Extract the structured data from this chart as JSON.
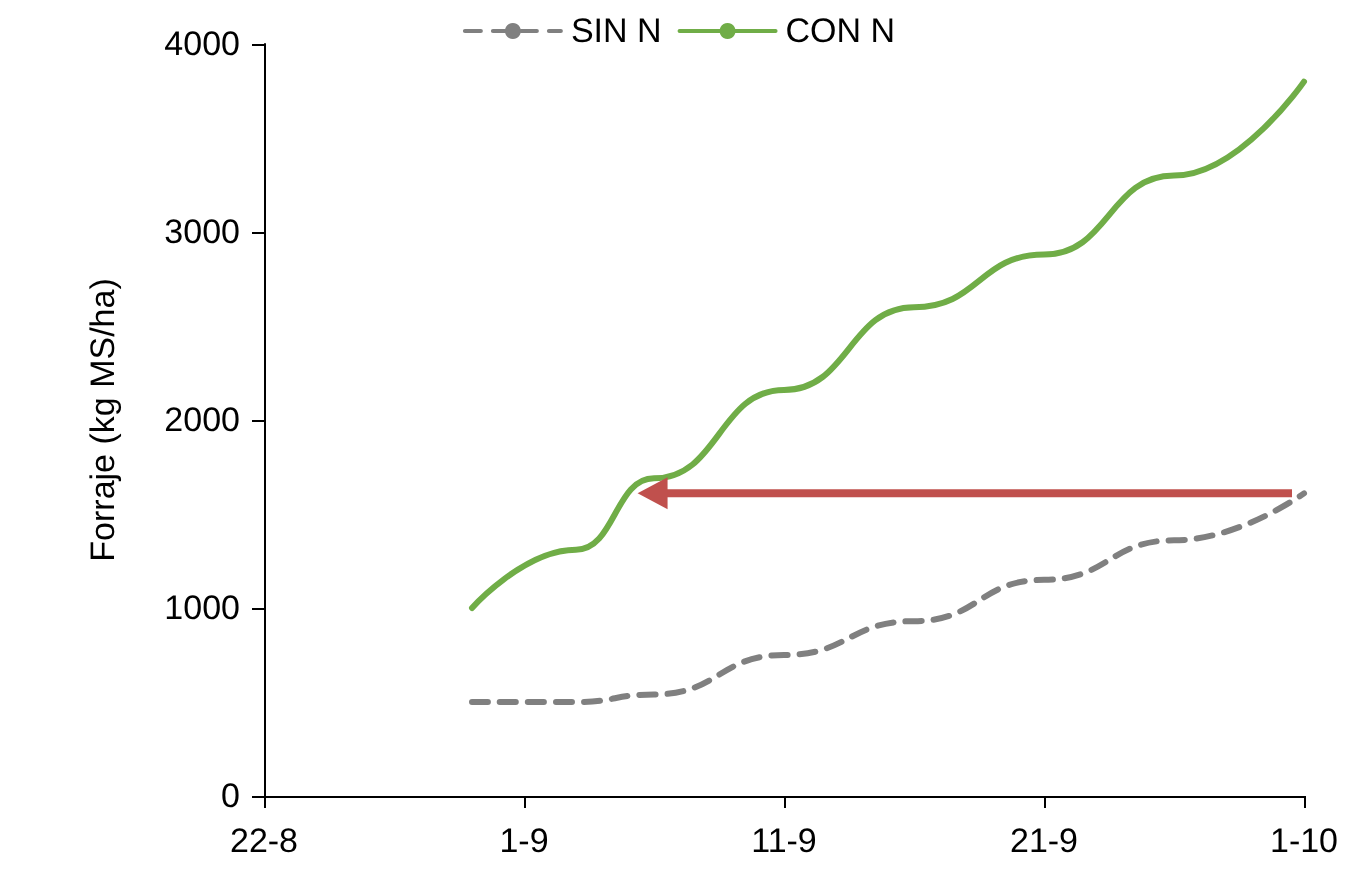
{
  "chart_data": {
    "type": "line",
    "ylabel": "Forraje (kg MS/ha)",
    "x": [
      "--08-30",
      "--09-03",
      "--09-06",
      "--09-11",
      "--09-16",
      "--09-21",
      "--09-26",
      "--10-01"
    ],
    "series": [
      {
        "name": "SIN N",
        "color": "#808080",
        "line_style": "dashed",
        "values": [
          500,
          500,
          540,
          750,
          930,
          1150,
          1360,
          1610
        ]
      },
      {
        "name": "CON N",
        "color": "#70ad47",
        "line_style": "solid",
        "values": [
          1000,
          1310,
          1690,
          2160,
          2600,
          2880,
          3300,
          3800
        ]
      }
    ],
    "xlim": [
      "--08-22",
      "--10-01"
    ],
    "xticks": [
      {
        "value": "--08-22",
        "label": "22-8"
      },
      {
        "value": "--09-01",
        "label": "1-9"
      },
      {
        "value": "--09-11",
        "label": "11-9"
      },
      {
        "value": "--09-21",
        "label": "21-9"
      },
      {
        "value": "--10-01",
        "label": "1-10"
      }
    ],
    "ylim": [
      0,
      4000
    ],
    "yticks": [
      0,
      1000,
      2000,
      3000,
      4000
    ],
    "grid": false,
    "legend": "top",
    "marker": "none"
  }
}
